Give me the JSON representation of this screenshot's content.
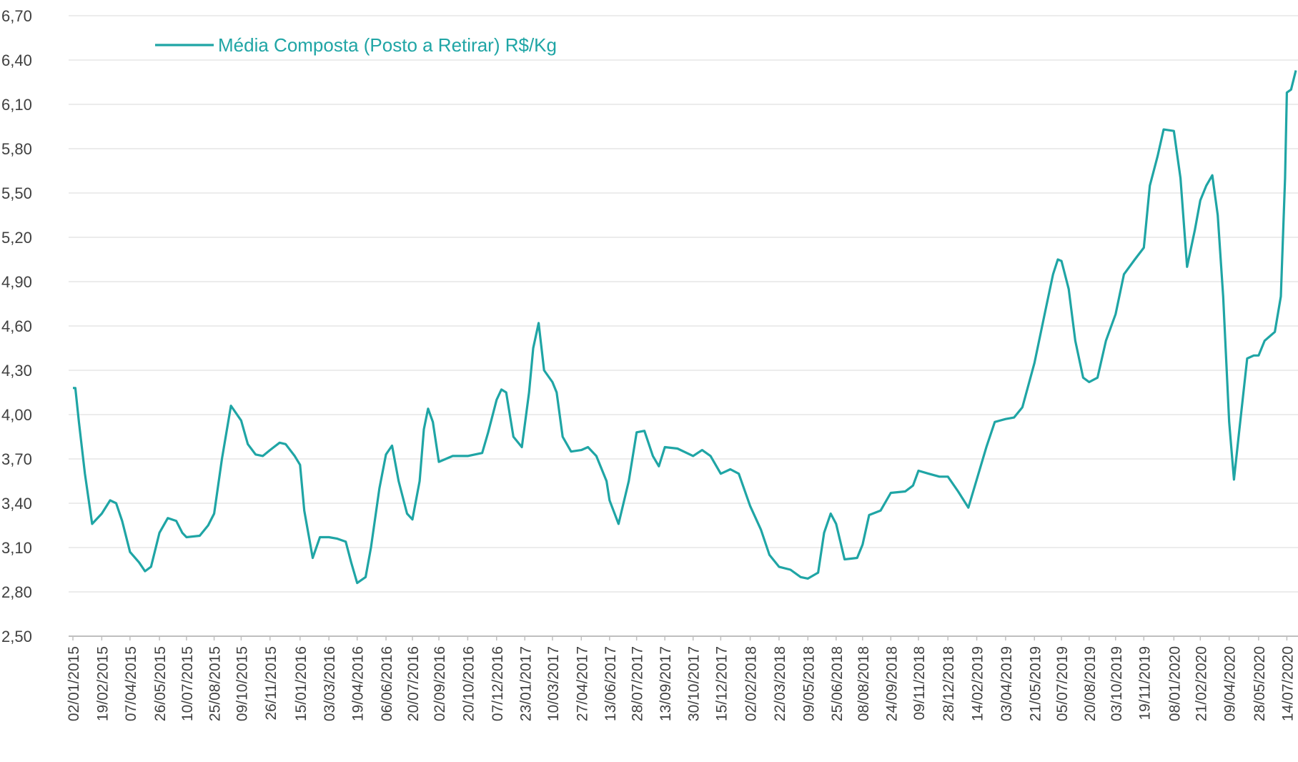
{
  "chart_data": {
    "type": "line",
    "x": [
      "02/01/2015",
      "06/01/2015",
      "12/01/2015",
      "22/01/2015",
      "03/02/2015",
      "19/02/2015",
      "05/03/2015",
      "15/03/2015",
      "25/03/2015",
      "07/04/2015",
      "22/04/2015",
      "02/05/2015",
      "12/05/2015",
      "26/05/2015",
      "09/06/2015",
      "23/06/2015",
      "03/07/2015",
      "10/07/2015",
      "01/08/2015",
      "15/08/2015",
      "25/08/2015",
      "07/09/2015",
      "22/09/2015",
      "09/10/2015",
      "20/10/2015",
      "02/11/2015",
      "14/11/2015",
      "26/11/2015",
      "12/12/2015",
      "22/12/2015",
      "06/01/2016",
      "15/01/2016",
      "22/01/2016",
      "05/02/2016",
      "17/02/2016",
      "03/03/2016",
      "17/03/2016",
      "31/03/2016",
      "09/04/2016",
      "19/04/2016",
      "03/05/2016",
      "12/05/2016",
      "26/05/2016",
      "06/06/2016",
      "16/06/2016",
      "27/06/2016",
      "11/07/2016",
      "20/07/2016",
      "01/08/2016",
      "08/08/2016",
      "15/08/2016",
      "23/08/2016",
      "02/09/2016",
      "25/09/2016",
      "20/10/2016",
      "13/11/2016",
      "23/11/2016",
      "07/12/2016",
      "15/12/2016",
      "23/12/2016",
      "04/01/2017",
      "18/01/2017",
      "30/01/2017",
      "06/02/2017",
      "15/02/2017",
      "24/02/2017",
      "10/03/2017",
      "17/03/2017",
      "27/03/2017",
      "10/04/2017",
      "27/04/2017",
      "08/05/2017",
      "22/05/2017",
      "08/06/2017",
      "13/06/2017",
      "28/06/2017",
      "15/07/2017",
      "28/07/2017",
      "10/08/2017",
      "24/08/2017",
      "03/09/2017",
      "13/09/2017",
      "04/10/2017",
      "30/10/2017",
      "14/11/2017",
      "28/11/2017",
      "15/12/2017",
      "31/12/2017",
      "14/01/2018",
      "02/02/2018",
      "20/02/2018",
      "06/03/2018",
      "22/03/2018",
      "10/04/2018",
      "27/04/2018",
      "09/05/2018",
      "26/05/2018",
      "05/06/2018",
      "16/06/2018",
      "25/06/2018",
      "09/07/2018",
      "30/07/2018",
      "08/08/2018",
      "19/08/2018",
      "07/09/2018",
      "24/09/2018",
      "18/10/2018",
      "31/10/2018",
      "09/11/2018",
      "26/11/2018",
      "14/12/2018",
      "28/12/2018",
      "14/01/2019",
      "31/01/2019",
      "14/02/2019",
      "02/03/2019",
      "16/03/2019",
      "03/04/2019",
      "17/04/2019",
      "01/05/2019",
      "21/05/2019",
      "08/06/2019",
      "21/06/2019",
      "29/06/2019",
      "05/07/2019",
      "17/07/2019",
      "28/07/2019",
      "10/08/2019",
      "20/08/2019",
      "03/09/2019",
      "17/09/2019",
      "03/10/2019",
      "17/10/2019",
      "04/11/2019",
      "19/11/2019",
      "29/11/2019",
      "12/12/2019",
      "22/12/2019",
      "08/01/2020",
      "19/01/2020",
      "30/01/2020",
      "12/02/2020",
      "21/02/2020",
      "02/03/2020",
      "12/03/2020",
      "21/03/2020",
      "30/03/2020",
      "09/04/2020",
      "17/04/2020",
      "26/04/2020",
      "09/05/2020",
      "20/05/2020",
      "28/05/2020",
      "07/06/2020",
      "24/06/2020",
      "04/07/2020",
      "11/07/2020",
      "14/07/2020",
      "21/07/2020",
      "29/07/2020"
    ],
    "series": [
      {
        "name": "Média Composta (Posto a Retirar) R$/Kg",
        "color": "#1fa5a5",
        "values": [
          4.18,
          4.18,
          3.95,
          3.6,
          3.26,
          3.33,
          3.42,
          3.4,
          3.28,
          3.07,
          3.0,
          2.94,
          2.97,
          3.2,
          3.3,
          3.28,
          3.2,
          3.17,
          3.18,
          3.25,
          3.33,
          3.7,
          4.06,
          3.96,
          3.8,
          3.73,
          3.72,
          3.76,
          3.81,
          3.8,
          3.72,
          3.66,
          3.35,
          3.03,
          3.17,
          3.17,
          3.16,
          3.14,
          3.0,
          2.86,
          2.9,
          3.1,
          3.5,
          3.73,
          3.79,
          3.55,
          3.33,
          3.29,
          3.55,
          3.9,
          4.04,
          3.95,
          3.68,
          3.72,
          3.72,
          3.74,
          3.88,
          4.1,
          4.17,
          4.15,
          3.85,
          3.78,
          4.15,
          4.45,
          4.62,
          4.3,
          4.22,
          4.15,
          3.85,
          3.75,
          3.76,
          3.78,
          3.72,
          3.55,
          3.42,
          3.26,
          3.55,
          3.88,
          3.89,
          3.72,
          3.65,
          3.78,
          3.77,
          3.72,
          3.76,
          3.72,
          3.6,
          3.63,
          3.6,
          3.38,
          3.22,
          3.05,
          2.97,
          2.95,
          2.9,
          2.89,
          2.93,
          3.2,
          3.33,
          3.26,
          3.02,
          3.03,
          3.12,
          3.32,
          3.35,
          3.47,
          3.48,
          3.52,
          3.62,
          3.6,
          3.58,
          3.58,
          3.48,
          3.37,
          3.56,
          3.78,
          3.95,
          3.97,
          3.98,
          4.05,
          4.35,
          4.7,
          4.95,
          5.05,
          5.04,
          4.85,
          4.5,
          4.25,
          4.22,
          4.25,
          4.5,
          4.68,
          4.95,
          5.05,
          5.13,
          5.55,
          5.75,
          5.93,
          5.92,
          5.6,
          5.0,
          5.25,
          5.45,
          5.55,
          5.62,
          5.35,
          4.8,
          3.95,
          3.56,
          3.9,
          4.38,
          4.4,
          4.4,
          4.5,
          4.56,
          4.8,
          5.6,
          6.18,
          6.2,
          6.33
        ]
      }
    ],
    "xticks": [
      "02/01/2015",
      "19/02/2015",
      "07/04/2015",
      "26/05/2015",
      "10/07/2015",
      "25/08/2015",
      "09/10/2015",
      "26/11/2015",
      "15/01/2016",
      "03/03/2016",
      "19/04/2016",
      "06/06/2016",
      "20/07/2016",
      "02/09/2016",
      "20/10/2016",
      "07/12/2016",
      "23/01/2017",
      "10/03/2017",
      "27/04/2017",
      "13/06/2017",
      "28/07/2017",
      "13/09/2017",
      "30/10/2017",
      "15/12/2017",
      "02/02/2018",
      "22/03/2018",
      "09/05/2018",
      "25/06/2018",
      "08/08/2018",
      "24/09/2018",
      "09/11/2018",
      "28/12/2018",
      "14/02/2019",
      "03/04/2019",
      "21/05/2019",
      "05/07/2019",
      "20/08/2019",
      "03/10/2019",
      "19/11/2019",
      "08/01/2020",
      "21/02/2020",
      "09/04/2020",
      "28/05/2020",
      "14/07/2020"
    ],
    "ylim": [
      2.5,
      6.7
    ],
    "yticks": [
      {
        "value": 2.5,
        "label": "2,50"
      },
      {
        "value": 2.8,
        "label": "2,80"
      },
      {
        "value": 3.1,
        "label": "3,10"
      },
      {
        "value": 3.4,
        "label": "3,40"
      },
      {
        "value": 3.7,
        "label": "3,70"
      },
      {
        "value": 4.0,
        "label": "4,00"
      },
      {
        "value": 4.3,
        "label": "4,30"
      },
      {
        "value": 4.6,
        "label": "4,60"
      },
      {
        "value": 4.9,
        "label": "4,90"
      },
      {
        "value": 5.2,
        "label": "5,20"
      },
      {
        "value": 5.5,
        "label": "5,50"
      },
      {
        "value": 5.8,
        "label": "5,80"
      },
      {
        "value": 6.1,
        "label": "6,10"
      },
      {
        "value": 6.4,
        "label": "6,40"
      },
      {
        "value": 6.7,
        "label": "6,70"
      }
    ],
    "grid": true,
    "legend": "top-left"
  }
}
